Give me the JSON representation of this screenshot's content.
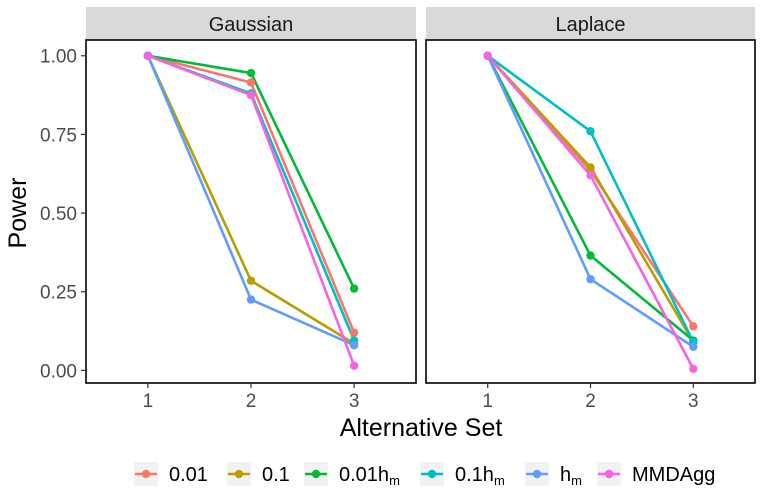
{
  "chart_data": {
    "type": "line",
    "xlabel": "Alternative Set",
    "ylabel": "Power",
    "x": [
      1,
      2,
      3
    ],
    "xlim": [
      0.4,
      3.6
    ],
    "ylim": [
      -0.04,
      1.05
    ],
    "yticks": [
      0.0,
      0.25,
      0.5,
      0.75,
      1.0
    ],
    "ytick_labels": [
      "0.00",
      "0.25",
      "0.50",
      "0.75",
      "1.00"
    ],
    "xtick_labels": [
      "1",
      "2",
      "3"
    ],
    "legend_position": "bottom",
    "series": [
      {
        "key": "s001",
        "name": "0.01",
        "base": "0.01",
        "sub": "",
        "color": "#F8766D"
      },
      {
        "key": "s01",
        "name": "0.1",
        "base": "0.1",
        "sub": "",
        "color": "#B79F00"
      },
      {
        "key": "s001hm",
        "name": "0.01h_m",
        "base": "0.01h",
        "sub": "m",
        "color": "#00BA38"
      },
      {
        "key": "s01hm",
        "name": "0.1h_m",
        "base": "0.1h",
        "sub": "m",
        "color": "#00BFC4"
      },
      {
        "key": "shm",
        "name": "h_m",
        "base": "h",
        "sub": "m",
        "color": "#619CFF"
      },
      {
        "key": "smmd",
        "name": "MMDAgg",
        "base": "MMDAgg",
        "sub": "",
        "color": "#F564E3"
      }
    ],
    "panels": [
      {
        "title": "Gaussian",
        "values": {
          "s001": [
            1.0,
            0.915,
            0.12
          ],
          "s01": [
            1.0,
            0.285,
            0.085
          ],
          "s001hm": [
            1.0,
            0.945,
            0.26
          ],
          "s01hm": [
            1.0,
            0.88,
            0.095
          ],
          "shm": [
            1.0,
            0.225,
            0.08
          ],
          "smmd": [
            1.0,
            0.875,
            0.015
          ]
        }
      },
      {
        "title": "Laplace",
        "values": {
          "s001": [
            1.0,
            0.635,
            0.14
          ],
          "s01": [
            1.0,
            0.645,
            0.09
          ],
          "s001hm": [
            1.0,
            0.365,
            0.095
          ],
          "s01hm": [
            1.0,
            0.76,
            0.09
          ],
          "shm": [
            1.0,
            0.29,
            0.075
          ],
          "smmd": [
            1.0,
            0.62,
            0.005
          ]
        }
      }
    ]
  }
}
